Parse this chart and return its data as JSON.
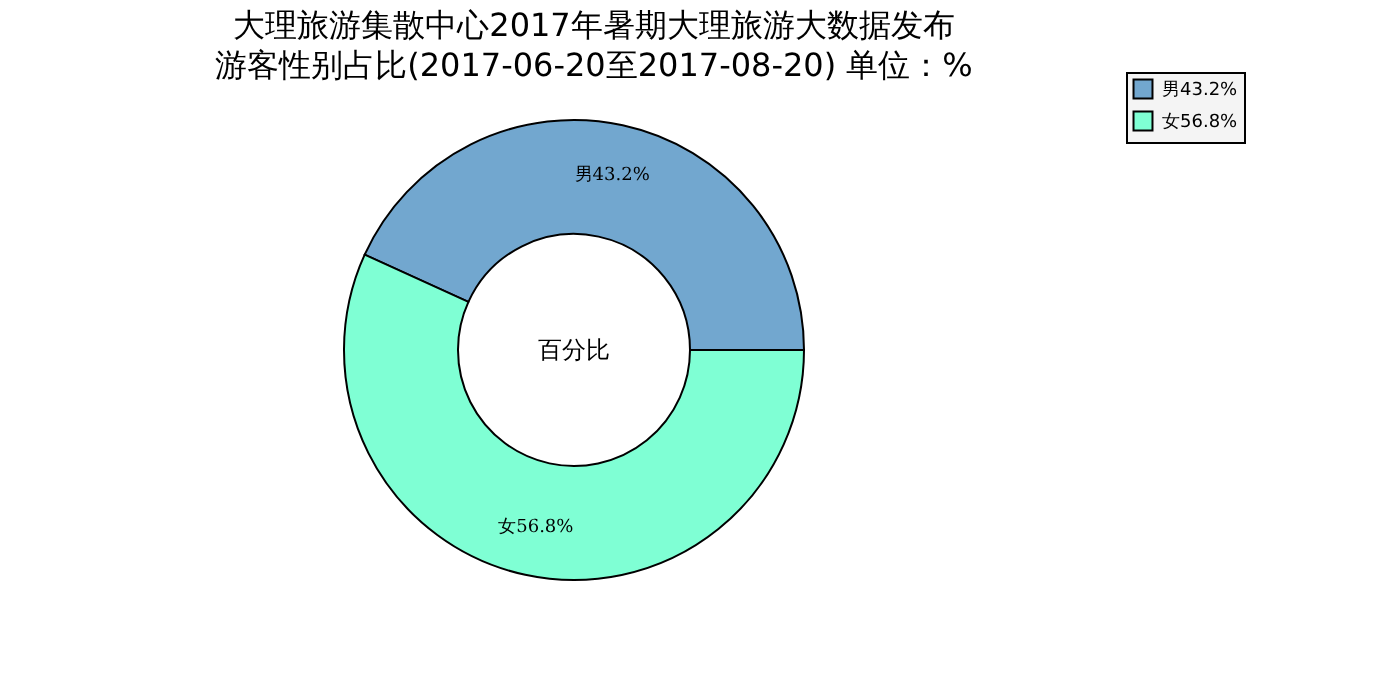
{
  "chart_data": {
    "type": "donut",
    "title": [
      "大理旅游集散中心2017年暑期大理旅游大数据发布",
      "游客性别占比(2017-06-20至2017-08-20) 单位：%"
    ],
    "categories": [
      "男43.2%",
      "女56.8%"
    ],
    "values": [
      43.2,
      56.8
    ],
    "colors": [
      "#72a7cf",
      "#7fffd4"
    ],
    "annotations": [
      "百分比"
    ],
    "legend": "top right"
  }
}
